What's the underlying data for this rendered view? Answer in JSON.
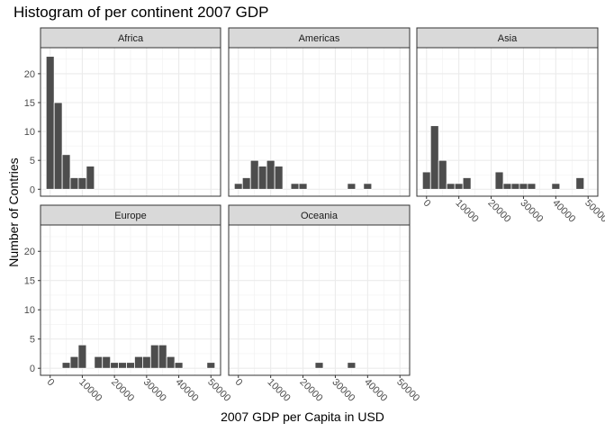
{
  "chart_data": {
    "type": "histogram",
    "title": "Histogram of per continent 2007 GDP",
    "xlabel": "2007 GDP per Capita in USD",
    "ylabel": "Number of Contries",
    "xlim": [
      -3000,
      53000
    ],
    "ylim": [
      -1.2,
      24.5
    ],
    "bin_width": 2500,
    "x_ticks": [
      0,
      10000,
      20000,
      30000,
      40000,
      50000
    ],
    "x_tick_labels": [
      "0",
      "10000",
      "20000",
      "30000",
      "40000",
      "50000"
    ],
    "y_ticks": [
      0,
      5,
      10,
      15,
      20
    ],
    "y_tick_labels": [
      "0",
      "5",
      "10",
      "15",
      "20"
    ],
    "grid": true,
    "bar_color": "#4d4d4d",
    "strip_color": "#d9d9d9",
    "panels": [
      {
        "name": "Africa",
        "bins": [
          {
            "x": 0,
            "count": 23
          },
          {
            "x": 2500,
            "count": 15
          },
          {
            "x": 5000,
            "count": 6
          },
          {
            "x": 7500,
            "count": 2
          },
          {
            "x": 10000,
            "count": 2
          },
          {
            "x": 12500,
            "count": 4
          }
        ]
      },
      {
        "name": "Americas",
        "bins": [
          {
            "x": 0,
            "count": 1
          },
          {
            "x": 2500,
            "count": 2
          },
          {
            "x": 5000,
            "count": 5
          },
          {
            "x": 7500,
            "count": 4
          },
          {
            "x": 10000,
            "count": 5
          },
          {
            "x": 12500,
            "count": 4
          },
          {
            "x": 17500,
            "count": 1
          },
          {
            "x": 20000,
            "count": 1
          },
          {
            "x": 35000,
            "count": 1
          },
          {
            "x": 40000,
            "count": 1
          }
        ]
      },
      {
        "name": "Asia",
        "bins": [
          {
            "x": 0,
            "count": 3
          },
          {
            "x": 2500,
            "count": 11
          },
          {
            "x": 5000,
            "count": 5
          },
          {
            "x": 7500,
            "count": 1
          },
          {
            "x": 10000,
            "count": 1
          },
          {
            "x": 12500,
            "count": 2
          },
          {
            "x": 22500,
            "count": 3
          },
          {
            "x": 25000,
            "count": 1
          },
          {
            "x": 27500,
            "count": 1
          },
          {
            "x": 30000,
            "count": 1
          },
          {
            "x": 32500,
            "count": 1
          },
          {
            "x": 40000,
            "count": 1
          },
          {
            "x": 47500,
            "count": 2
          }
        ]
      },
      {
        "name": "Europe",
        "bins": [
          {
            "x": 5000,
            "count": 1
          },
          {
            "x": 7500,
            "count": 2
          },
          {
            "x": 10000,
            "count": 4
          },
          {
            "x": 15000,
            "count": 2
          },
          {
            "x": 17500,
            "count": 2
          },
          {
            "x": 20000,
            "count": 1
          },
          {
            "x": 22500,
            "count": 1
          },
          {
            "x": 25000,
            "count": 1
          },
          {
            "x": 27500,
            "count": 2
          },
          {
            "x": 30000,
            "count": 2
          },
          {
            "x": 32500,
            "count": 4
          },
          {
            "x": 35000,
            "count": 4
          },
          {
            "x": 37500,
            "count": 2
          },
          {
            "x": 40000,
            "count": 1
          },
          {
            "x": 50000,
            "count": 1
          }
        ]
      },
      {
        "name": "Oceania",
        "bins": [
          {
            "x": 25000,
            "count": 1
          },
          {
            "x": 35000,
            "count": 1
          }
        ]
      }
    ]
  }
}
